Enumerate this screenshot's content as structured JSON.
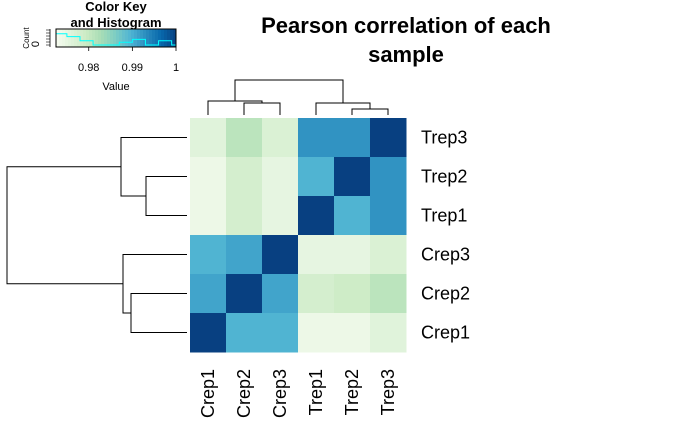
{
  "chart_data": {
    "type": "heatmap",
    "title_lines": [
      "Pearson correlation of each",
      "sample"
    ],
    "rows": [
      "Trep3",
      "Trep2",
      "Trep1",
      "Crep3",
      "Crep2",
      "Crep1"
    ],
    "columns": [
      "Crep1",
      "Crep2",
      "Crep3",
      "Trep1",
      "Trep2",
      "Trep3"
    ],
    "values": [
      [
        0.976,
        0.981,
        0.977,
        0.9925,
        0.9925,
        1.0
      ],
      [
        0.974,
        0.978,
        0.975,
        0.9895,
        1.0,
        0.9925
      ],
      [
        0.974,
        0.978,
        0.975,
        1.0,
        0.9895,
        0.9925
      ],
      [
        0.9895,
        0.991,
        1.0,
        0.975,
        0.975,
        0.977
      ],
      [
        0.991,
        1.0,
        0.991,
        0.978,
        0.979,
        0.981
      ],
      [
        1.0,
        0.9895,
        0.9895,
        0.974,
        0.974,
        0.976
      ]
    ],
    "value_range": [
      0.9725,
      1.0
    ],
    "color_scale": [
      "#f7fcf0",
      "#e0f3db",
      "#ccebc5",
      "#a8ddb5",
      "#7bccc4",
      "#4eb3d3",
      "#2b8cbe",
      "#0868ac",
      "#084081"
    ],
    "color_key": {
      "title_lines": [
        "Color Key",
        "and Histogram"
      ],
      "xlabel": "Value",
      "ylabel": "Count",
      "y_tick": "0",
      "x_ticks": [
        0.98,
        0.99,
        1
      ],
      "x_tick_labels": [
        "0.98",
        "0.99",
        "1"
      ],
      "histogram_line_color": "#00ffff"
    },
    "row_dendrogram": "((Trep3,(Trep2,Trep1)),(Crep3,(Crep2,Crep1)))",
    "col_dendrogram": "((Crep1,(Crep2,Crep3)),(Trep1,(Trep2,Trep3)))"
  }
}
